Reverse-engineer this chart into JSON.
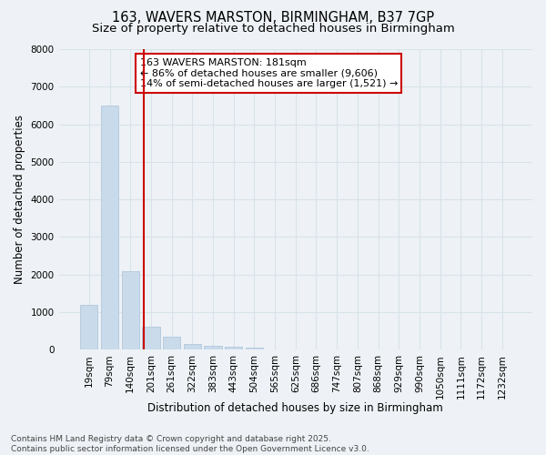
{
  "title1": "163, WAVERS MARSTON, BIRMINGHAM, B37 7GP",
  "title2": "Size of property relative to detached houses in Birmingham",
  "xlabel": "Distribution of detached houses by size in Birmingham",
  "ylabel": "Number of detached properties",
  "categories": [
    "19sqm",
    "79sqm",
    "140sqm",
    "201sqm",
    "261sqm",
    "322sqm",
    "383sqm",
    "443sqm",
    "504sqm",
    "565sqm",
    "625sqm",
    "686sqm",
    "747sqm",
    "807sqm",
    "868sqm",
    "929sqm",
    "990sqm",
    "1050sqm",
    "1111sqm",
    "1172sqm",
    "1232sqm"
  ],
  "values": [
    1200,
    6500,
    2100,
    600,
    350,
    150,
    100,
    70,
    50,
    0,
    0,
    0,
    0,
    0,
    0,
    0,
    0,
    0,
    0,
    0,
    0
  ],
  "bar_color": "#c9daea",
  "bar_edge_color": "#b0c8dc",
  "vline_color": "#cc0000",
  "annotation_text": "163 WAVERS MARSTON: 181sqm\n← 86% of detached houses are smaller (9,606)\n14% of semi-detached houses are larger (1,521) →",
  "annotation_box_facecolor": "#ffffff",
  "annotation_box_edgecolor": "#cc0000",
  "ylim": [
    0,
    8000
  ],
  "yticks": [
    0,
    1000,
    2000,
    3000,
    4000,
    5000,
    6000,
    7000,
    8000
  ],
  "grid_color": "#d8e2ea",
  "background_color": "#eef2f6",
  "footnote": "Contains HM Land Registry data © Crown copyright and database right 2025.\nContains public sector information licensed under the Open Government Licence v3.0.",
  "title_fontsize": 10.5,
  "subtitle_fontsize": 9.5,
  "axis_label_fontsize": 8.5,
  "tick_fontsize": 7.5,
  "annotation_fontsize": 8,
  "footnote_fontsize": 6.5
}
